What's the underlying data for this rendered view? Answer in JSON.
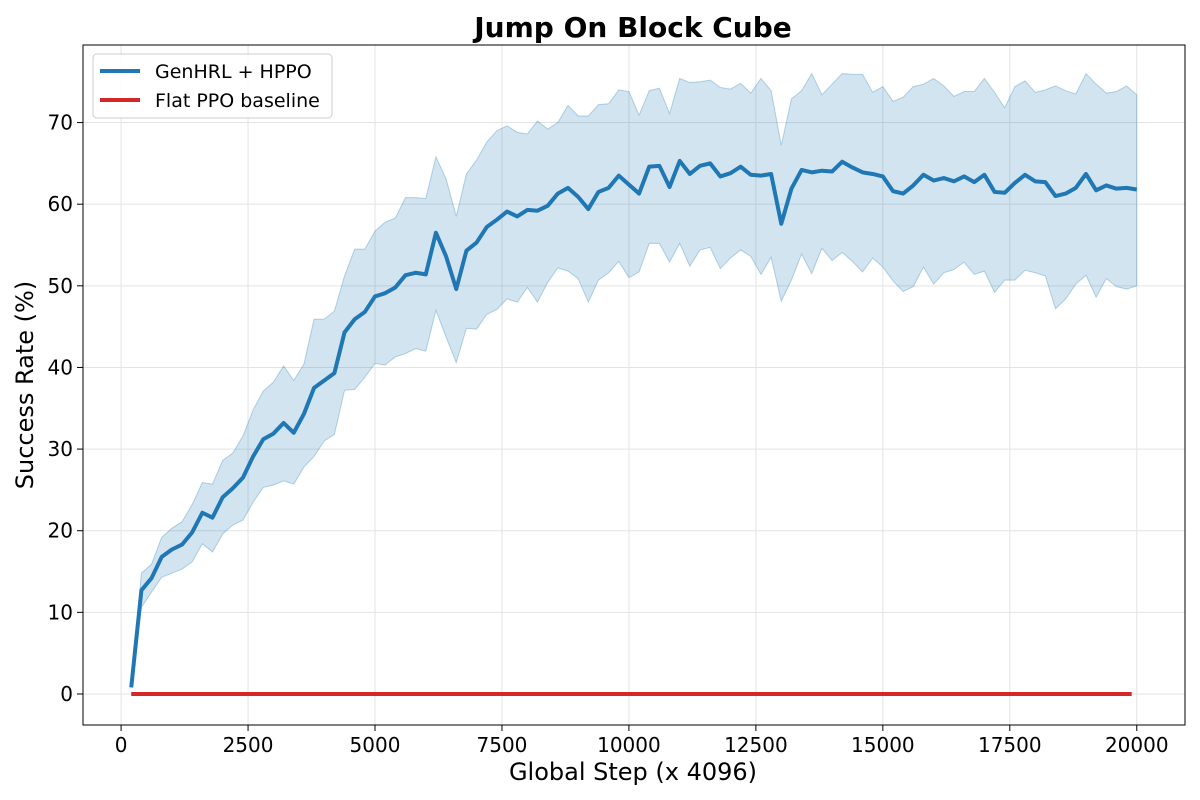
{
  "chart_data": {
    "type": "line",
    "title": "Jump On Block Cube",
    "xlabel": "Global Step (x 4096)",
    "ylabel": "Success Rate (%)",
    "xlim": [
      -750,
      20950
    ],
    "ylim": [
      -3.8,
      79.5
    ],
    "xticks": [
      0,
      2500,
      5000,
      7500,
      10000,
      12500,
      15000,
      17500,
      20000
    ],
    "yticks": [
      0,
      10,
      20,
      30,
      40,
      50,
      60,
      70
    ],
    "grid": true,
    "legend_position": "upper-left",
    "series": [
      {
        "name": "GenHRL + HPPO",
        "color": "#1f77b4",
        "band_color": "#1f77b4",
        "x": [
          200,
          400,
          600,
          800,
          1000,
          1200,
          1400,
          1600,
          1800,
          2000,
          2200,
          2400,
          2600,
          2800,
          3000,
          3200,
          3400,
          3600,
          3800,
          4000,
          4200,
          4400,
          4600,
          4800,
          5000,
          5200,
          5400,
          5600,
          5800,
          6000,
          6200,
          6400,
          6600,
          6800,
          7000,
          7200,
          7400,
          7600,
          7800,
          8000,
          8200,
          8400,
          8600,
          8800,
          9000,
          9200,
          9400,
          9600,
          9800,
          10000,
          10200,
          10400,
          10600,
          10800,
          11000,
          11200,
          11400,
          11600,
          11800,
          12000,
          12200,
          12400,
          12600,
          12800,
          13000,
          13200,
          13400,
          13600,
          13800,
          14000,
          14200,
          14400,
          14600,
          14800,
          15000,
          15200,
          15400,
          15600,
          15800,
          16000,
          16200,
          16400,
          16600,
          16800,
          17000,
          17200,
          17400,
          17600,
          17800,
          18000,
          18200,
          18400,
          18600,
          18800,
          19000,
          19200,
          19400,
          19600,
          19800,
          20000
        ],
        "y": [
          0.8,
          12.7,
          14.2,
          16.8,
          17.7,
          18.3,
          19.8,
          22.2,
          21.6,
          24.1,
          25.2,
          26.5,
          29.1,
          31.2,
          31.9,
          33.2,
          32.0,
          34.3,
          37.5,
          38.4,
          39.3,
          44.3,
          45.9,
          46.8,
          48.7,
          49.1,
          49.8,
          51.3,
          51.6,
          51.4,
          56.5,
          53.6,
          49.6,
          54.3,
          55.3,
          57.2,
          58.1,
          59.1,
          58.5,
          59.3,
          59.2,
          59.8,
          61.3,
          62.0,
          60.9,
          59.4,
          61.5,
          62.0,
          63.5,
          62.4,
          61.3,
          64.6,
          64.7,
          62.1,
          65.3,
          63.7,
          64.7,
          65.0,
          63.4,
          63.8,
          64.6,
          63.6,
          63.5,
          63.7,
          57.6,
          61.9,
          64.2,
          63.9,
          64.1,
          64.0,
          65.2,
          64.5,
          63.9,
          63.7,
          63.4,
          61.6,
          61.3,
          62.3,
          63.6,
          62.9,
          63.2,
          62.8,
          63.4,
          62.7,
          63.6,
          61.5,
          61.4,
          62.6,
          63.6,
          62.8,
          62.7,
          61.0,
          61.3,
          62.0,
          63.7,
          61.7,
          62.3,
          61.9,
          62.0,
          61.8
        ],
        "y_upper": [
          0.8,
          14.8,
          15.9,
          19.2,
          20.3,
          21.1,
          23.2,
          25.9,
          25.7,
          28.6,
          29.5,
          31.6,
          34.8,
          37.1,
          38.2,
          40.2,
          38.4,
          40.4,
          45.9,
          45.9,
          46.9,
          51.2,
          54.5,
          54.5,
          56.7,
          57.8,
          58.3,
          60.8,
          60.8,
          60.7,
          65.8,
          63.1,
          58.5,
          63.7,
          65.4,
          67.6,
          69.0,
          69.6,
          68.8,
          68.6,
          70.2,
          69.2,
          70.0,
          72.1,
          70.8,
          70.8,
          72.2,
          72.3,
          74.0,
          73.8,
          70.9,
          73.9,
          74.2,
          71.1,
          75.4,
          74.9,
          75.0,
          75.2,
          74.3,
          74.1,
          74.8,
          73.6,
          75.4,
          73.9,
          67.2,
          72.9,
          73.9,
          76.0,
          73.4,
          74.7,
          76.0,
          75.9,
          75.9,
          73.7,
          74.4,
          72.6,
          73.1,
          74.4,
          74.7,
          75.4,
          74.5,
          73.2,
          73.8,
          73.8,
          75.4,
          73.7,
          71.8,
          74.4,
          75.1,
          73.7,
          74.0,
          74.5,
          73.9,
          73.5,
          76.0,
          74.7,
          73.6,
          73.8,
          74.5,
          73.4
        ],
        "y_lower": [
          0.8,
          10.6,
          12.5,
          14.3,
          14.8,
          15.3,
          16.2,
          18.4,
          17.4,
          19.6,
          20.7,
          21.3,
          23.5,
          25.3,
          25.6,
          26.1,
          25.7,
          27.8,
          29.1,
          31.0,
          31.8,
          37.2,
          37.3,
          38.8,
          40.5,
          40.3,
          41.3,
          41.7,
          42.3,
          42.0,
          47.0,
          43.7,
          40.6,
          44.8,
          44.7,
          46.5,
          47.1,
          48.4,
          48.0,
          49.8,
          48.0,
          50.4,
          52.2,
          51.8,
          50.9,
          48.0,
          50.7,
          51.6,
          53.0,
          51.0,
          51.7,
          55.2,
          55.2,
          52.9,
          55.2,
          52.4,
          54.4,
          54.7,
          52.1,
          53.4,
          54.4,
          53.6,
          51.4,
          53.5,
          48.1,
          50.7,
          53.9,
          51.5,
          54.6,
          53.1,
          54.1,
          53.0,
          51.7,
          53.4,
          52.3,
          50.6,
          49.3,
          49.9,
          52.3,
          50.2,
          51.6,
          52.0,
          52.9,
          51.4,
          51.8,
          49.2,
          50.7,
          50.7,
          51.9,
          51.6,
          51.2,
          47.2,
          48.4,
          50.2,
          51.3,
          48.6,
          50.9,
          49.9,
          49.6,
          50.0
        ]
      },
      {
        "name": "Flat PPO baseline",
        "color": "#d62728",
        "x": [
          200,
          19900
        ],
        "y": [
          0,
          0
        ]
      }
    ]
  }
}
